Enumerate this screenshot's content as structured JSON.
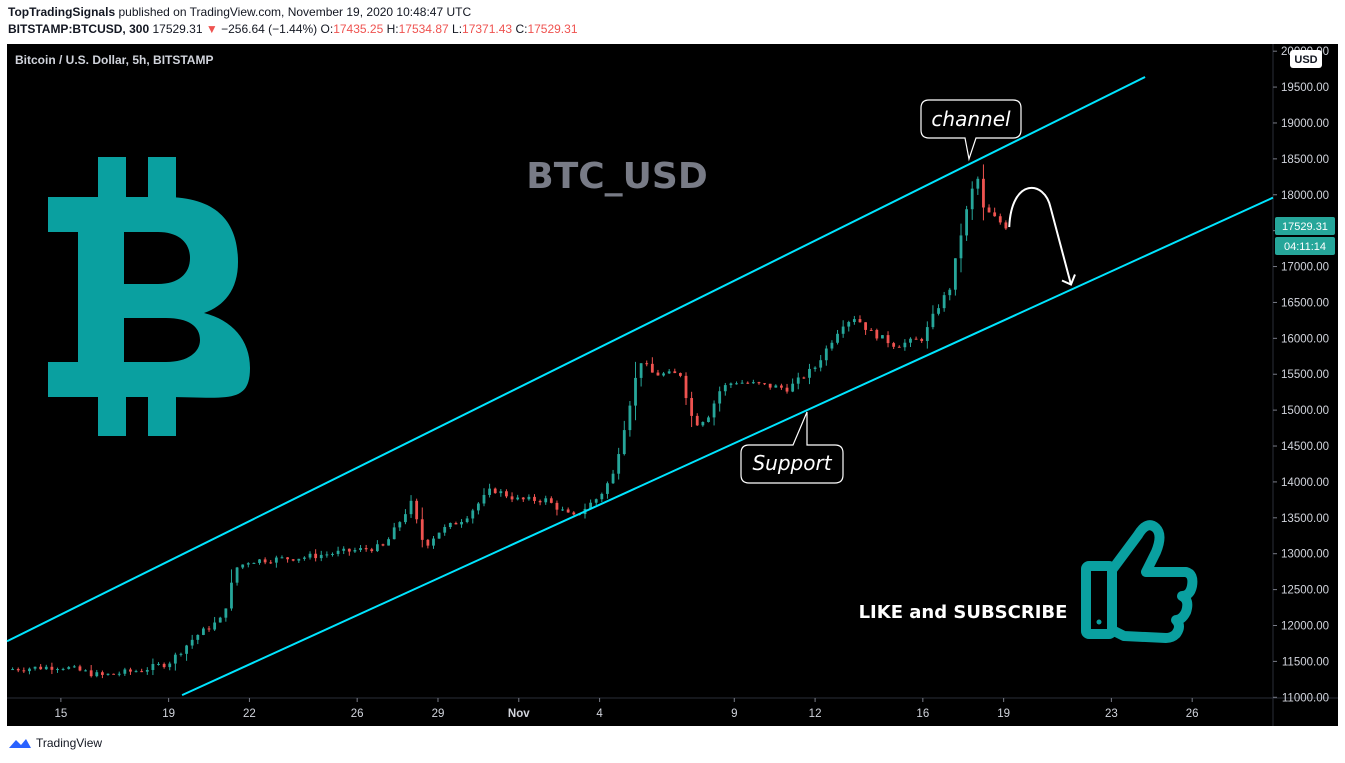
{
  "header": {
    "publisher": "TopTradingSignals",
    "published_text": "published on TradingView.com, November 19, 2020 10:48:47 UTC",
    "symbol": "BITSTAMP:BTCUSD, 300",
    "last": "17529.31",
    "change_arrow": "▼",
    "change": "−256.64 (−1.44%)",
    "o_label": "O:",
    "o": "17435.25",
    "h_label": "H:",
    "h": "17534.87",
    "l_label": "L:",
    "l": "17371.43",
    "c_label": "C:",
    "c": "17529.31"
  },
  "pane": {
    "legend": "Bitcoin / U.S. Dollar, 5h, BITSTAMP",
    "watermark": "BTC_USD",
    "currency_button": "USD",
    "price_label": "17529.31",
    "countdown_label": "04:11:14"
  },
  "annotations": {
    "channel": "channel",
    "support": "Support",
    "cta": "LIKE and SUBSCRIBE"
  },
  "colors": {
    "background": "#000000",
    "up": "#26a69a",
    "down": "#ef5350",
    "channel_line": "#00e5ff",
    "logo": "#0aa0a0",
    "watermark": "#787b86",
    "price_label_bg": "#26a69a"
  },
  "footer": {
    "brand": "TradingView"
  },
  "chart_data": {
    "type": "candlestick",
    "x_tick_labels": [
      "15",
      "19",
      "22",
      "26",
      "29",
      "Nov",
      "4",
      "9",
      "12",
      "16",
      "19",
      "23",
      "26"
    ],
    "y_tick_labels": [
      "11000.00",
      "11500.00",
      "12000.00",
      "12500.00",
      "13000.00",
      "13500.00",
      "14000.00",
      "14500.00",
      "15000.00",
      "15500.00",
      "16000.00",
      "16500.00",
      "17000.00",
      "17500.00",
      "18000.00",
      "18500.00",
      "19000.00",
      "19500.00",
      "20000.00"
    ],
    "ylim": [
      10990,
      20100
    ],
    "x_range": [
      "2020-10-13",
      "2020-11-29"
    ],
    "price_path": [
      [
        "2020-10-13T00:00",
        11390
      ],
      [
        "2020-10-15T00:00",
        11430
      ],
      [
        "2020-10-16T12:00",
        11300
      ],
      [
        "2020-10-18T00:00",
        11380
      ],
      [
        "2020-10-19T00:00",
        11480
      ],
      [
        "2020-10-20T00:00",
        11850
      ],
      [
        "2020-10-21T00:00",
        12100
      ],
      [
        "2020-10-21T12:00",
        12800
      ],
      [
        "2020-10-22T00:00",
        12900
      ],
      [
        "2020-10-24T00:00",
        12950
      ],
      [
        "2020-10-26T00:00",
        13050
      ],
      [
        "2020-10-27T00:00",
        13100
      ],
      [
        "2020-10-28T00:00",
        13700
      ],
      [
        "2020-10-28T12:00",
        13100
      ],
      [
        "2020-10-29T00:00",
        13300
      ],
      [
        "2020-10-30T00:00",
        13500
      ],
      [
        "2020-10-31T00:00",
        13900
      ],
      [
        "2020-11-01T00:00",
        13750
      ],
      [
        "2020-11-02T00:00",
        13750
      ],
      [
        "2020-11-03T00:00",
        13500
      ],
      [
        "2020-11-04T00:00",
        13800
      ],
      [
        "2020-11-04T12:00",
        14100
      ],
      [
        "2020-11-05T00:00",
        14900
      ],
      [
        "2020-11-05T12:00",
        15700
      ],
      [
        "2020-11-06T00:00",
        15500
      ],
      [
        "2020-11-07T00:00",
        15500
      ],
      [
        "2020-11-07T12:00",
        14800
      ],
      [
        "2020-11-08T00:00",
        14900
      ],
      [
        "2020-11-08T12:00",
        15300
      ],
      [
        "2020-11-09T00:00",
        15400
      ],
      [
        "2020-11-10T00:00",
        15350
      ],
      [
        "2020-11-11T00:00",
        15300
      ],
      [
        "2020-11-12T00:00",
        15600
      ],
      [
        "2020-11-13T00:00",
        16200
      ],
      [
        "2020-11-13T12:00",
        16300
      ],
      [
        "2020-11-14T00:00",
        16100
      ],
      [
        "2020-11-15T00:00",
        15900
      ],
      [
        "2020-11-16T00:00",
        16000
      ],
      [
        "2020-11-16T12:00",
        16400
      ],
      [
        "2020-11-17T00:00",
        16700
      ],
      [
        "2020-11-17T12:00",
        17600
      ],
      [
        "2020-11-18T00:00",
        18300
      ],
      [
        "2020-11-18T06:00",
        17800
      ],
      [
        "2020-11-18T18:00",
        17650
      ],
      [
        "2020-11-19T05:00",
        17530
      ]
    ],
    "channel_lines": [
      {
        "start": [
          "2020-10-13T00:00",
          11780
        ],
        "end": [
          "2020-11-24T06:00",
          19640
        ]
      },
      {
        "start": [
          "2020-10-19T12:00",
          11030
        ],
        "end": [
          "2020-11-29T00:00",
          17960
        ]
      }
    ],
    "projection_arrow": {
      "from": [
        "2020-11-19T05:00",
        17550
      ],
      "peak": [
        "2020-11-20T00:00",
        18100
      ],
      "to": [
        "2020-11-21T12:00",
        16750
      ]
    }
  }
}
